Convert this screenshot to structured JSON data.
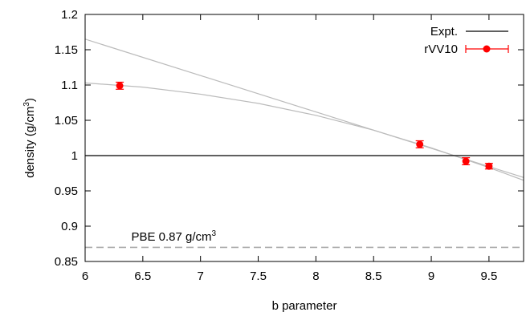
{
  "chart_data": {
    "type": "scatter",
    "xlabel": "b parameter",
    "ylabel_base": "density (g/cm",
    "ylabel_sup": "3",
    "ylabel_end": ")",
    "xlim": [
      6,
      9.8
    ],
    "ylim": [
      0.85,
      1.2
    ],
    "xticks": [
      6,
      6.5,
      7,
      7.5,
      8,
      8.5,
      9,
      9.5
    ],
    "xtick_labels": [
      "6",
      "6.5",
      "7",
      "7.5",
      "8",
      "8.5",
      "9",
      "9.5"
    ],
    "yticks": [
      0.85,
      0.9,
      0.95,
      1.0,
      1.05,
      1.1,
      1.15,
      1.2
    ],
    "ytick_labels": [
      "0.85",
      "0.9",
      "0.95",
      "1",
      "1.05",
      "1.1",
      "1.15",
      "1.2"
    ],
    "grid": false,
    "legend_position": "top-right",
    "series": [
      {
        "name": "rVV10",
        "color": "#ff0000",
        "x": [
          6.3,
          8.9,
          9.3,
          9.5
        ],
        "y": [
          1.099,
          1.016,
          0.992,
          0.985
        ],
        "yerr": [
          0.005,
          0.005,
          0.005,
          0.004
        ]
      }
    ],
    "reference_lines": [
      {
        "name": "Expt.",
        "y": 1.0,
        "color": "#000000",
        "style": "solid"
      },
      {
        "y": 0.87,
        "color": "#aaaaaa",
        "style": "dashed"
      }
    ],
    "fit_curves": [
      {
        "type": "linear",
        "color": "#bbbbbb",
        "points": [
          [
            6.0,
            1.165
          ],
          [
            9.8,
            0.969
          ]
        ]
      },
      {
        "type": "quadratic",
        "color": "#bbbbbb",
        "points": [
          [
            6.0,
            1.103
          ],
          [
            6.5,
            1.097
          ],
          [
            7.0,
            1.087
          ],
          [
            7.5,
            1.074
          ],
          [
            8.0,
            1.057
          ],
          [
            8.5,
            1.036
          ],
          [
            9.0,
            1.011
          ],
          [
            9.5,
            0.983
          ],
          [
            9.8,
            0.965
          ]
        ]
      }
    ],
    "annotation": {
      "text_base": "PBE 0.87 g/cm",
      "text_sup": "3",
      "x": 6.4,
      "y": 0.8855
    }
  }
}
